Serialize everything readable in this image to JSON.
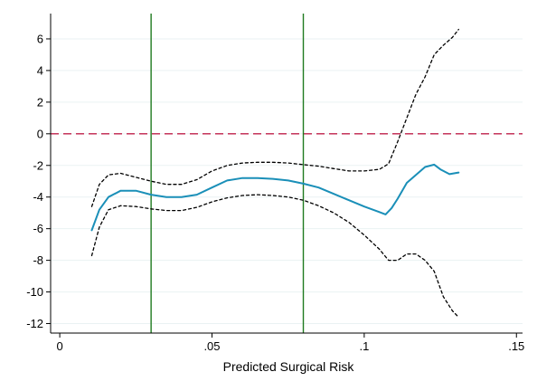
{
  "chart_data": {
    "type": "line",
    "title": "",
    "xlabel": "Predicted Surgical Risk",
    "ylabel": "",
    "xlim": [
      -0.003,
      0.152
    ],
    "ylim": [
      -12.6,
      7.6
    ],
    "xticks": [
      0,
      0.05,
      0.1,
      0.15
    ],
    "xtick_labels": [
      "0",
      ".05",
      ".1",
      ".15"
    ],
    "yticks": [
      6,
      4,
      2,
      0,
      -2,
      -4,
      -6,
      -8,
      -10,
      -12
    ],
    "ytick_labels": [
      "6",
      "4",
      "2",
      "0",
      "-2",
      "-4",
      "-6",
      "-8",
      "-10",
      "-12"
    ],
    "grid": true,
    "reference_lines": {
      "horizontal": [
        {
          "y": 0,
          "color": "#c0204a",
          "style": "dashed"
        }
      ],
      "vertical": [
        {
          "x": 0.03,
          "color": "#1f7a1f",
          "style": "solid"
        },
        {
          "x": 0.08,
          "color": "#1f7a1f",
          "style": "solid"
        }
      ]
    },
    "series": [
      {
        "role": "estimate",
        "color": "#1a8fb8",
        "style": "solid",
        "x": [
          0.0105,
          0.013,
          0.016,
          0.02,
          0.025,
          0.03,
          0.035,
          0.04,
          0.045,
          0.05,
          0.055,
          0.06,
          0.065,
          0.07,
          0.075,
          0.08,
          0.085,
          0.09,
          0.095,
          0.1,
          0.105,
          0.107,
          0.109,
          0.111,
          0.114,
          0.117,
          0.12,
          0.123,
          0.125,
          0.128,
          0.131
        ],
        "y": [
          -6.1,
          -4.8,
          -4.0,
          -3.6,
          -3.6,
          -3.85,
          -4.0,
          -4.0,
          -3.85,
          -3.4,
          -2.95,
          -2.8,
          -2.8,
          -2.85,
          -2.95,
          -3.15,
          -3.4,
          -3.8,
          -4.2,
          -4.6,
          -4.95,
          -5.1,
          -4.7,
          -4.1,
          -3.1,
          -2.6,
          -2.1,
          -1.95,
          -2.25,
          -2.55,
          -2.45
        ]
      },
      {
        "role": "upper-bound",
        "color": "#000000",
        "style": "dotted",
        "x": [
          0.0105,
          0.013,
          0.016,
          0.02,
          0.025,
          0.03,
          0.035,
          0.04,
          0.045,
          0.05,
          0.055,
          0.06,
          0.065,
          0.07,
          0.075,
          0.08,
          0.085,
          0.09,
          0.095,
          0.1,
          0.105,
          0.108,
          0.111,
          0.114,
          0.117,
          0.12,
          0.123,
          0.126,
          0.129,
          0.131
        ],
        "y": [
          -4.6,
          -3.2,
          -2.6,
          -2.5,
          -2.75,
          -3.0,
          -3.2,
          -3.2,
          -2.9,
          -2.35,
          -2.0,
          -1.85,
          -1.8,
          -1.8,
          -1.85,
          -1.95,
          -2.05,
          -2.2,
          -2.35,
          -2.35,
          -2.25,
          -1.9,
          -0.5,
          1.0,
          2.5,
          3.6,
          5.0,
          5.6,
          6.1,
          6.6
        ]
      },
      {
        "role": "lower-bound",
        "color": "#000000",
        "style": "dotted",
        "x": [
          0.0105,
          0.013,
          0.016,
          0.02,
          0.025,
          0.03,
          0.035,
          0.04,
          0.045,
          0.05,
          0.055,
          0.06,
          0.065,
          0.07,
          0.075,
          0.08,
          0.085,
          0.09,
          0.095,
          0.1,
          0.105,
          0.108,
          0.111,
          0.114,
          0.117,
          0.12,
          0.123,
          0.126,
          0.129,
          0.131
        ],
        "y": [
          -7.7,
          -5.9,
          -4.8,
          -4.55,
          -4.6,
          -4.75,
          -4.85,
          -4.85,
          -4.65,
          -4.3,
          -4.05,
          -3.9,
          -3.85,
          -3.9,
          -4.0,
          -4.2,
          -4.55,
          -5.0,
          -5.6,
          -6.4,
          -7.3,
          -8.0,
          -8.0,
          -7.6,
          -7.6,
          -8.0,
          -8.7,
          -10.3,
          -11.2,
          -11.6
        ]
      }
    ]
  }
}
